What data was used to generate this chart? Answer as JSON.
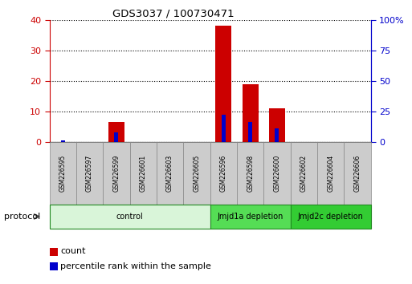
{
  "title": "GDS3037 / 100730471",
  "samples": [
    "GSM226595",
    "GSM226597",
    "GSM226599",
    "GSM226601",
    "GSM226603",
    "GSM226605",
    "GSM226596",
    "GSM226598",
    "GSM226600",
    "GSM226602",
    "GSM226604",
    "GSM226606"
  ],
  "count_values": [
    0,
    0,
    6.5,
    0,
    0,
    0,
    38,
    19,
    11,
    0,
    0,
    0
  ],
  "percentile_values": [
    1.5,
    0,
    8.0,
    0,
    0,
    0,
    22.5,
    16.5,
    11.0,
    0,
    0,
    0
  ],
  "groups": [
    {
      "label": "control",
      "start": 0,
      "end": 5,
      "color": "#d9f5d9",
      "border_color": "#228822"
    },
    {
      "label": "Jmjd1a depletion",
      "start": 6,
      "end": 8,
      "color": "#55dd55",
      "border_color": "#228822"
    },
    {
      "label": "Jmjd2c depletion",
      "start": 9,
      "end": 11,
      "color": "#33cc33",
      "border_color": "#228822"
    }
  ],
  "left_ylim": [
    0,
    40
  ],
  "right_ylim": [
    0,
    100
  ],
  "left_yticks": [
    0,
    10,
    20,
    30,
    40
  ],
  "right_yticks": [
    0,
    25,
    50,
    75,
    100
  ],
  "right_yticklabels": [
    "0",
    "25",
    "50",
    "75",
    "100%"
  ],
  "bar_color": "#cc0000",
  "percentile_color": "#0000cc",
  "background_color": "#ffffff",
  "plot_bg_color": "#ffffff",
  "grid_color": "#000000",
  "left_axis_color": "#cc0000",
  "right_axis_color": "#0000cc",
  "protocol_label": "protocol",
  "legend_count": "count",
  "legend_percentile": "percentile rank within the sample",
  "bar_width": 0.6,
  "pct_bar_width": 0.15
}
